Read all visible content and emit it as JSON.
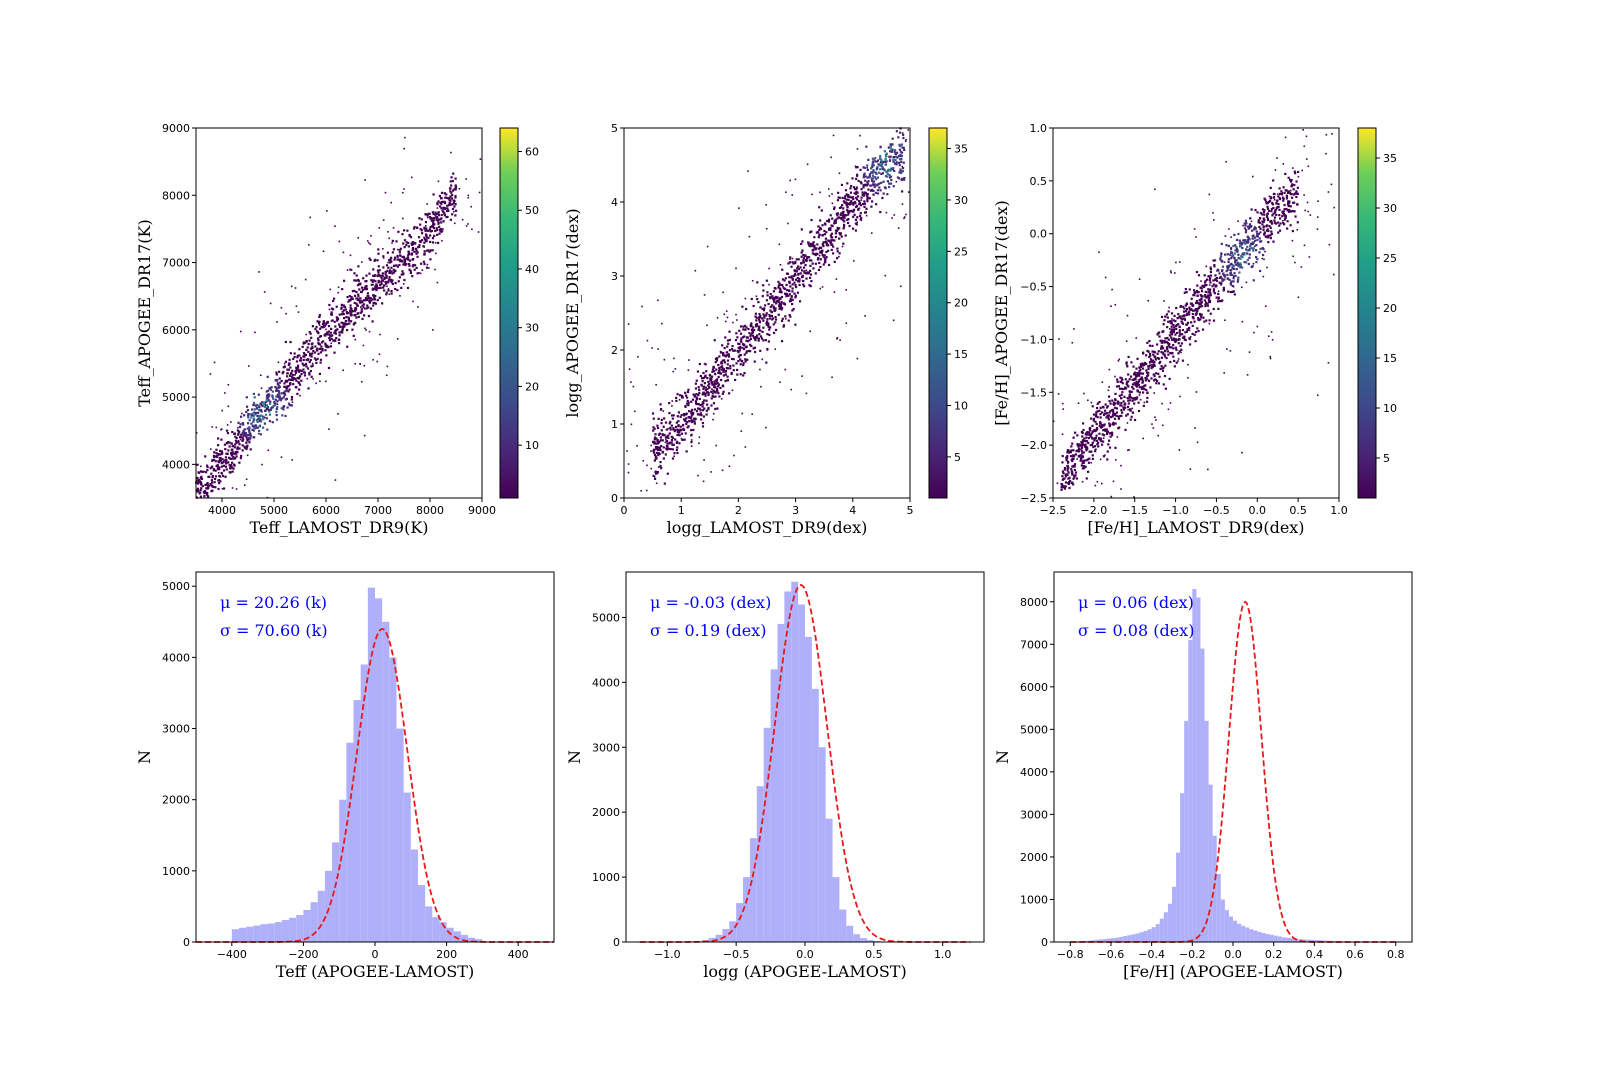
{
  "colors": {
    "hist_fill": "#b0b0fa",
    "fit_line": "#e41a1c",
    "annotation": "#0000ff",
    "colormap": "viridis"
  },
  "chart_data": [
    {
      "type": "heatmap",
      "subtype": "density-scatter",
      "xlabel": "Teff_LAMOST_DR9(K)",
      "ylabel": "Teff_APOGEE_DR17(K)",
      "xlim": [
        3500,
        9000
      ],
      "ylim": [
        3500,
        9000
      ],
      "xticks": [
        4000,
        5000,
        6000,
        7000,
        8000,
        9000
      ],
      "yticks": [
        4000,
        5000,
        6000,
        7000,
        8000,
        9000
      ],
      "colorbar": {
        "range": [
          1,
          64
        ],
        "ticks": [
          10,
          20,
          30,
          40,
          50,
          60
        ]
      },
      "trend": {
        "x": [
          3500,
          4500,
          5000,
          5500,
          6000,
          6500,
          7000,
          7500,
          8000,
          8500
        ],
        "y": [
          3550,
          4500,
          4980,
          5450,
          5950,
          6350,
          6700,
          7050,
          7500,
          8100
        ]
      },
      "peak": {
        "x": 4800,
        "y": 4800
      },
      "scatter_spread": 180
    },
    {
      "type": "heatmap",
      "subtype": "density-scatter",
      "xlabel": "logg_LAMOST_DR9(dex)",
      "ylabel": "logg_APOGEE_DR17(dex)",
      "xlim": [
        0,
        5
      ],
      "ylim": [
        0,
        5
      ],
      "xticks": [
        0,
        1,
        2,
        3,
        4,
        5
      ],
      "yticks": [
        0,
        1,
        2,
        3,
        4,
        5
      ],
      "colorbar": {
        "range": [
          1,
          37
        ],
        "ticks": [
          5,
          10,
          15,
          20,
          25,
          30,
          35
        ]
      },
      "trend": {
        "x": [
          0.5,
          1.0,
          1.5,
          2.0,
          2.5,
          3.0,
          3.5,
          4.0,
          4.5,
          4.9
        ],
        "y": [
          0.6,
          1.0,
          1.5,
          2.0,
          2.45,
          2.95,
          3.45,
          4.0,
          4.45,
          4.65
        ]
      },
      "peak": {
        "x": 4.6,
        "y": 4.55
      },
      "scatter_spread": 0.2
    },
    {
      "type": "heatmap",
      "subtype": "density-scatter",
      "xlabel": "[Fe/H]_LAMOST_DR9(dex)",
      "ylabel": "[Fe/H]_APOGEE_DR17(dex)",
      "xlim": [
        -2.5,
        1.0
      ],
      "ylim": [
        -2.5,
        1.0
      ],
      "xticks": [
        -2.5,
        -2.0,
        -1.5,
        -1.0,
        -0.5,
        0.0,
        0.5,
        1.0
      ],
      "yticks": [
        -2.5,
        -2.0,
        -1.5,
        -1.0,
        -0.5,
        0.0,
        0.5,
        1.0
      ],
      "tick_labels": [
        "−2.5",
        "−2.0",
        "−1.5",
        "−1.0",
        "−0.5",
        "0.0",
        "0.5",
        "1.0"
      ],
      "colorbar": {
        "range": [
          1,
          38
        ],
        "ticks": [
          5,
          10,
          15,
          20,
          25,
          30,
          35
        ]
      },
      "trend": {
        "x": [
          -2.4,
          -2.0,
          -1.5,
          -1.0,
          -0.5,
          0.0,
          0.3,
          0.5
        ],
        "y": [
          -2.3,
          -1.9,
          -1.45,
          -0.95,
          -0.45,
          0.0,
          0.25,
          0.4
        ]
      },
      "peak": {
        "x": -0.2,
        "y": -0.2
      },
      "scatter_spread": 0.13
    },
    {
      "type": "bar",
      "subtype": "histogram",
      "xlabel": "Teff (APOGEE-LAMOST)",
      "ylabel": "N",
      "xlim": [
        -500,
        500
      ],
      "ylim": [
        0,
        5200
      ],
      "xticks": [
        -400,
        -200,
        0,
        200,
        400
      ],
      "xtick_labels": [
        "−400",
        "−200",
        "0",
        "200",
        "400"
      ],
      "yticks": [
        0,
        1000,
        2000,
        3000,
        4000,
        5000
      ],
      "bins": {
        "start": -400,
        "width": 20
      },
      "counts": [
        180,
        200,
        215,
        230,
        250,
        260,
        280,
        310,
        340,
        380,
        450,
        560,
        720,
        1000,
        1400,
        2000,
        2800,
        3400,
        3900,
        4980,
        4830,
        4500,
        4000,
        3000,
        2100,
        1300,
        800,
        500,
        350,
        280,
        200,
        150,
        100,
        60,
        40
      ],
      "fit": {
        "mu": 20.26,
        "sigma": 70.6,
        "amp": 4400,
        "range": [
          -500,
          500
        ]
      },
      "annotations": [
        "μ = 20.26 (k)",
        "σ = 70.60 (k)"
      ]
    },
    {
      "type": "bar",
      "subtype": "histogram",
      "xlabel": "logg (APOGEE-LAMOST)",
      "ylabel": "N",
      "xlim": [
        -1.3,
        1.3
      ],
      "ylim": [
        0,
        5700
      ],
      "xticks": [
        -1.0,
        -0.5,
        0.0,
        0.5,
        1.0
      ],
      "xtick_labels": [
        "−1.0",
        "−0.5",
        "0.0",
        "0.5",
        "1.0"
      ],
      "yticks": [
        0,
        1000,
        2000,
        3000,
        4000,
        5000
      ],
      "bins": {
        "start": -0.75,
        "width": 0.05
      },
      "counts": [
        30,
        60,
        110,
        200,
        320,
        600,
        1000,
        1600,
        2400,
        3300,
        4200,
        4900,
        5400,
        5550,
        5200,
        4700,
        3900,
        3000,
        1900,
        1000,
        500,
        250,
        120,
        60,
        30,
        15
      ],
      "fit": {
        "mu": -0.03,
        "sigma": 0.19,
        "amp": 5500,
        "range": [
          -1.2,
          1.2
        ]
      },
      "annotations": [
        "μ = -0.03 (dex)",
        "σ = 0.19 (dex)"
      ]
    },
    {
      "type": "bar",
      "subtype": "histogram",
      "xlabel": "[Fe/H] (APOGEE-LAMOST)",
      "ylabel": "N",
      "xlim": [
        -0.88,
        0.88
      ],
      "ylim": [
        0,
        8700
      ],
      "xticks": [
        -0.8,
        -0.6,
        -0.4,
        -0.2,
        0.0,
        0.2,
        0.4,
        0.6,
        0.8
      ],
      "xtick_labels": [
        "−0.8",
        "−0.6",
        "−0.4",
        "−0.2",
        "0.0",
        "0.2",
        "0.4",
        "0.6",
        "0.8"
      ],
      "yticks": [
        0,
        1000,
        2000,
        3000,
        4000,
        5000,
        6000,
        7000,
        8000
      ],
      "bins": {
        "start": -0.8,
        "width": 0.02
      },
      "counts": [
        10,
        15,
        20,
        25,
        30,
        40,
        50,
        60,
        70,
        80,
        90,
        100,
        120,
        140,
        160,
        180,
        200,
        230,
        260,
        300,
        350,
        420,
        550,
        700,
        900,
        1300,
        2100,
        3500,
        5200,
        7100,
        8300,
        8100,
        6900,
        5200,
        3700,
        2500,
        1600,
        1000,
        750,
        600,
        500,
        430,
        380,
        340,
        300,
        270,
        240,
        210,
        190,
        170,
        150,
        130,
        110,
        100,
        90,
        80,
        70,
        60,
        55,
        50,
        45,
        40,
        35,
        30,
        25,
        20,
        18,
        15,
        12,
        10,
        8,
        6,
        5,
        4,
        3,
        2,
        2,
        1,
        1,
        1
      ],
      "fit": {
        "mu": 0.06,
        "sigma": 0.08,
        "amp": 8000,
        "range": [
          -0.8,
          0.8
        ]
      },
      "annotations": [
        "μ = 0.06 (dex)",
        "σ = 0.08 (dex)"
      ]
    }
  ]
}
